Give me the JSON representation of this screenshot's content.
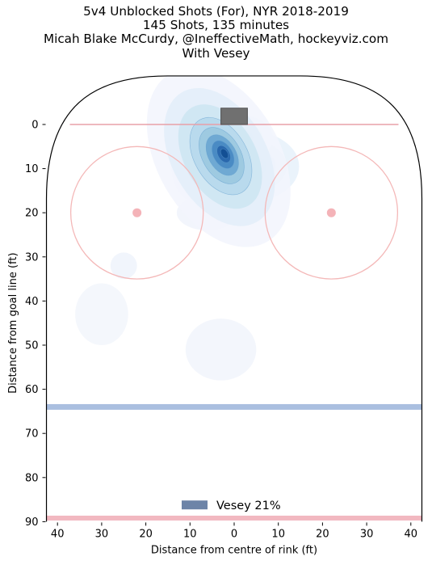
{
  "title_lines": [
    "5v4 Unblocked Shots (For), NYR 2018-2019",
    "145 Shots, 135 minutes",
    "Micah Blake McCurdy, @IneffectiveMath, hockeyviz.com",
    "With Vesey"
  ],
  "chart_data": {
    "type": "heatmap",
    "xlabel": "Distance from centre of rink (ft)",
    "ylabel": "Distance from goal line (ft)",
    "xlim": [
      42.5,
      -42.5
    ],
    "ylim": [
      90,
      -11
    ],
    "x_ticks": [
      40,
      30,
      20,
      10,
      0,
      10,
      20,
      30,
      40
    ],
    "x_tick_values": [
      40,
      30,
      20,
      10,
      0,
      -10,
      -20,
      -30,
      -40
    ],
    "y_ticks": [
      0,
      10,
      20,
      30,
      40,
      50,
      60,
      70,
      80,
      90
    ],
    "legend": {
      "label": "Vesey 21%",
      "color": "#6d84a8",
      "position": "bottom-center"
    },
    "rink": {
      "goal_line_y": 0,
      "blue_line_y": 64,
      "center_line_y": 89,
      "faceoff_circles": [
        {
          "x": 22,
          "y": 20,
          "r": 15
        },
        {
          "x": -22,
          "y": 20,
          "r": 15
        }
      ],
      "net": {
        "x_min": -3,
        "x_max": 3,
        "y_min": -3.7,
        "y_max": 0
      },
      "line_colors": {
        "goal": "#e8a0a8",
        "blue": "#aabfe0",
        "center": "#f2b8c0",
        "faceoff": "#f4b8b8"
      }
    },
    "density_blobs": [
      {
        "x": 2.2,
        "y": 6.6,
        "sx": 3.2,
        "sy": 5.4,
        "rot": -30,
        "weight": 1.0
      },
      {
        "x": 3.5,
        "y": 7.5,
        "sx": 6.0,
        "sy": 10.0,
        "rot": -30,
        "weight": 0.55
      },
      {
        "x": -3.5,
        "y": 9.5,
        "sx": 7.0,
        "sy": 5.0,
        "rot": 0,
        "weight": 0.22
      },
      {
        "x": -1.0,
        "y": 3.0,
        "sx": 6.0,
        "sy": 4.0,
        "rot": 0,
        "weight": 0.15
      }
    ],
    "faint_blobs": [
      {
        "x": 25.0,
        "y": 32.0,
        "sx": 3.0,
        "sy": 3.0,
        "weight": 0.06
      },
      {
        "x": 3.0,
        "y": 51.0,
        "sx": 8.0,
        "sy": 7.0,
        "weight": 0.04
      },
      {
        "x": 30.0,
        "y": 43.0,
        "sx": 6.0,
        "sy": 7.0,
        "weight": 0.03
      },
      {
        "x": 6.0,
        "y": 20.0,
        "sx": 7.0,
        "sy": 4.0,
        "weight": 0.05
      }
    ]
  }
}
